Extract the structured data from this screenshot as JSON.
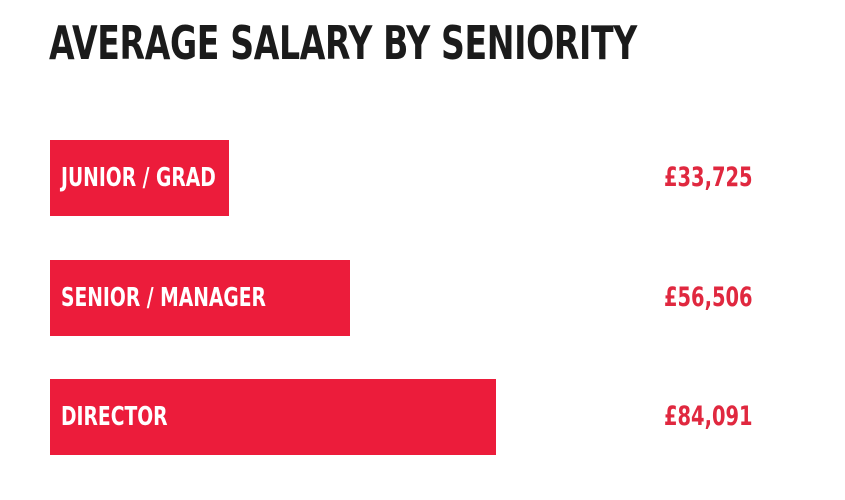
{
  "chart_data": {
    "type": "bar",
    "orientation": "horizontal",
    "title": "AVERAGE SALARY BY SENIORITY",
    "categories": [
      "JUNIOR / GRAD",
      "SENIOR / MANAGER",
      "DIRECTOR"
    ],
    "values": [
      33725,
      56506,
      84091
    ],
    "value_labels": [
      "£33,725",
      "£56,506",
      "£84,091"
    ],
    "xlim": [
      0,
      100000
    ],
    "grid": false,
    "legend": "none",
    "xlabel": "",
    "ylabel": ""
  },
  "colors": {
    "bar": "#ec1c3b",
    "value_text": "#e0283f",
    "title_text": "#1b1b1b",
    "bar_label_text": "#ffffff"
  }
}
